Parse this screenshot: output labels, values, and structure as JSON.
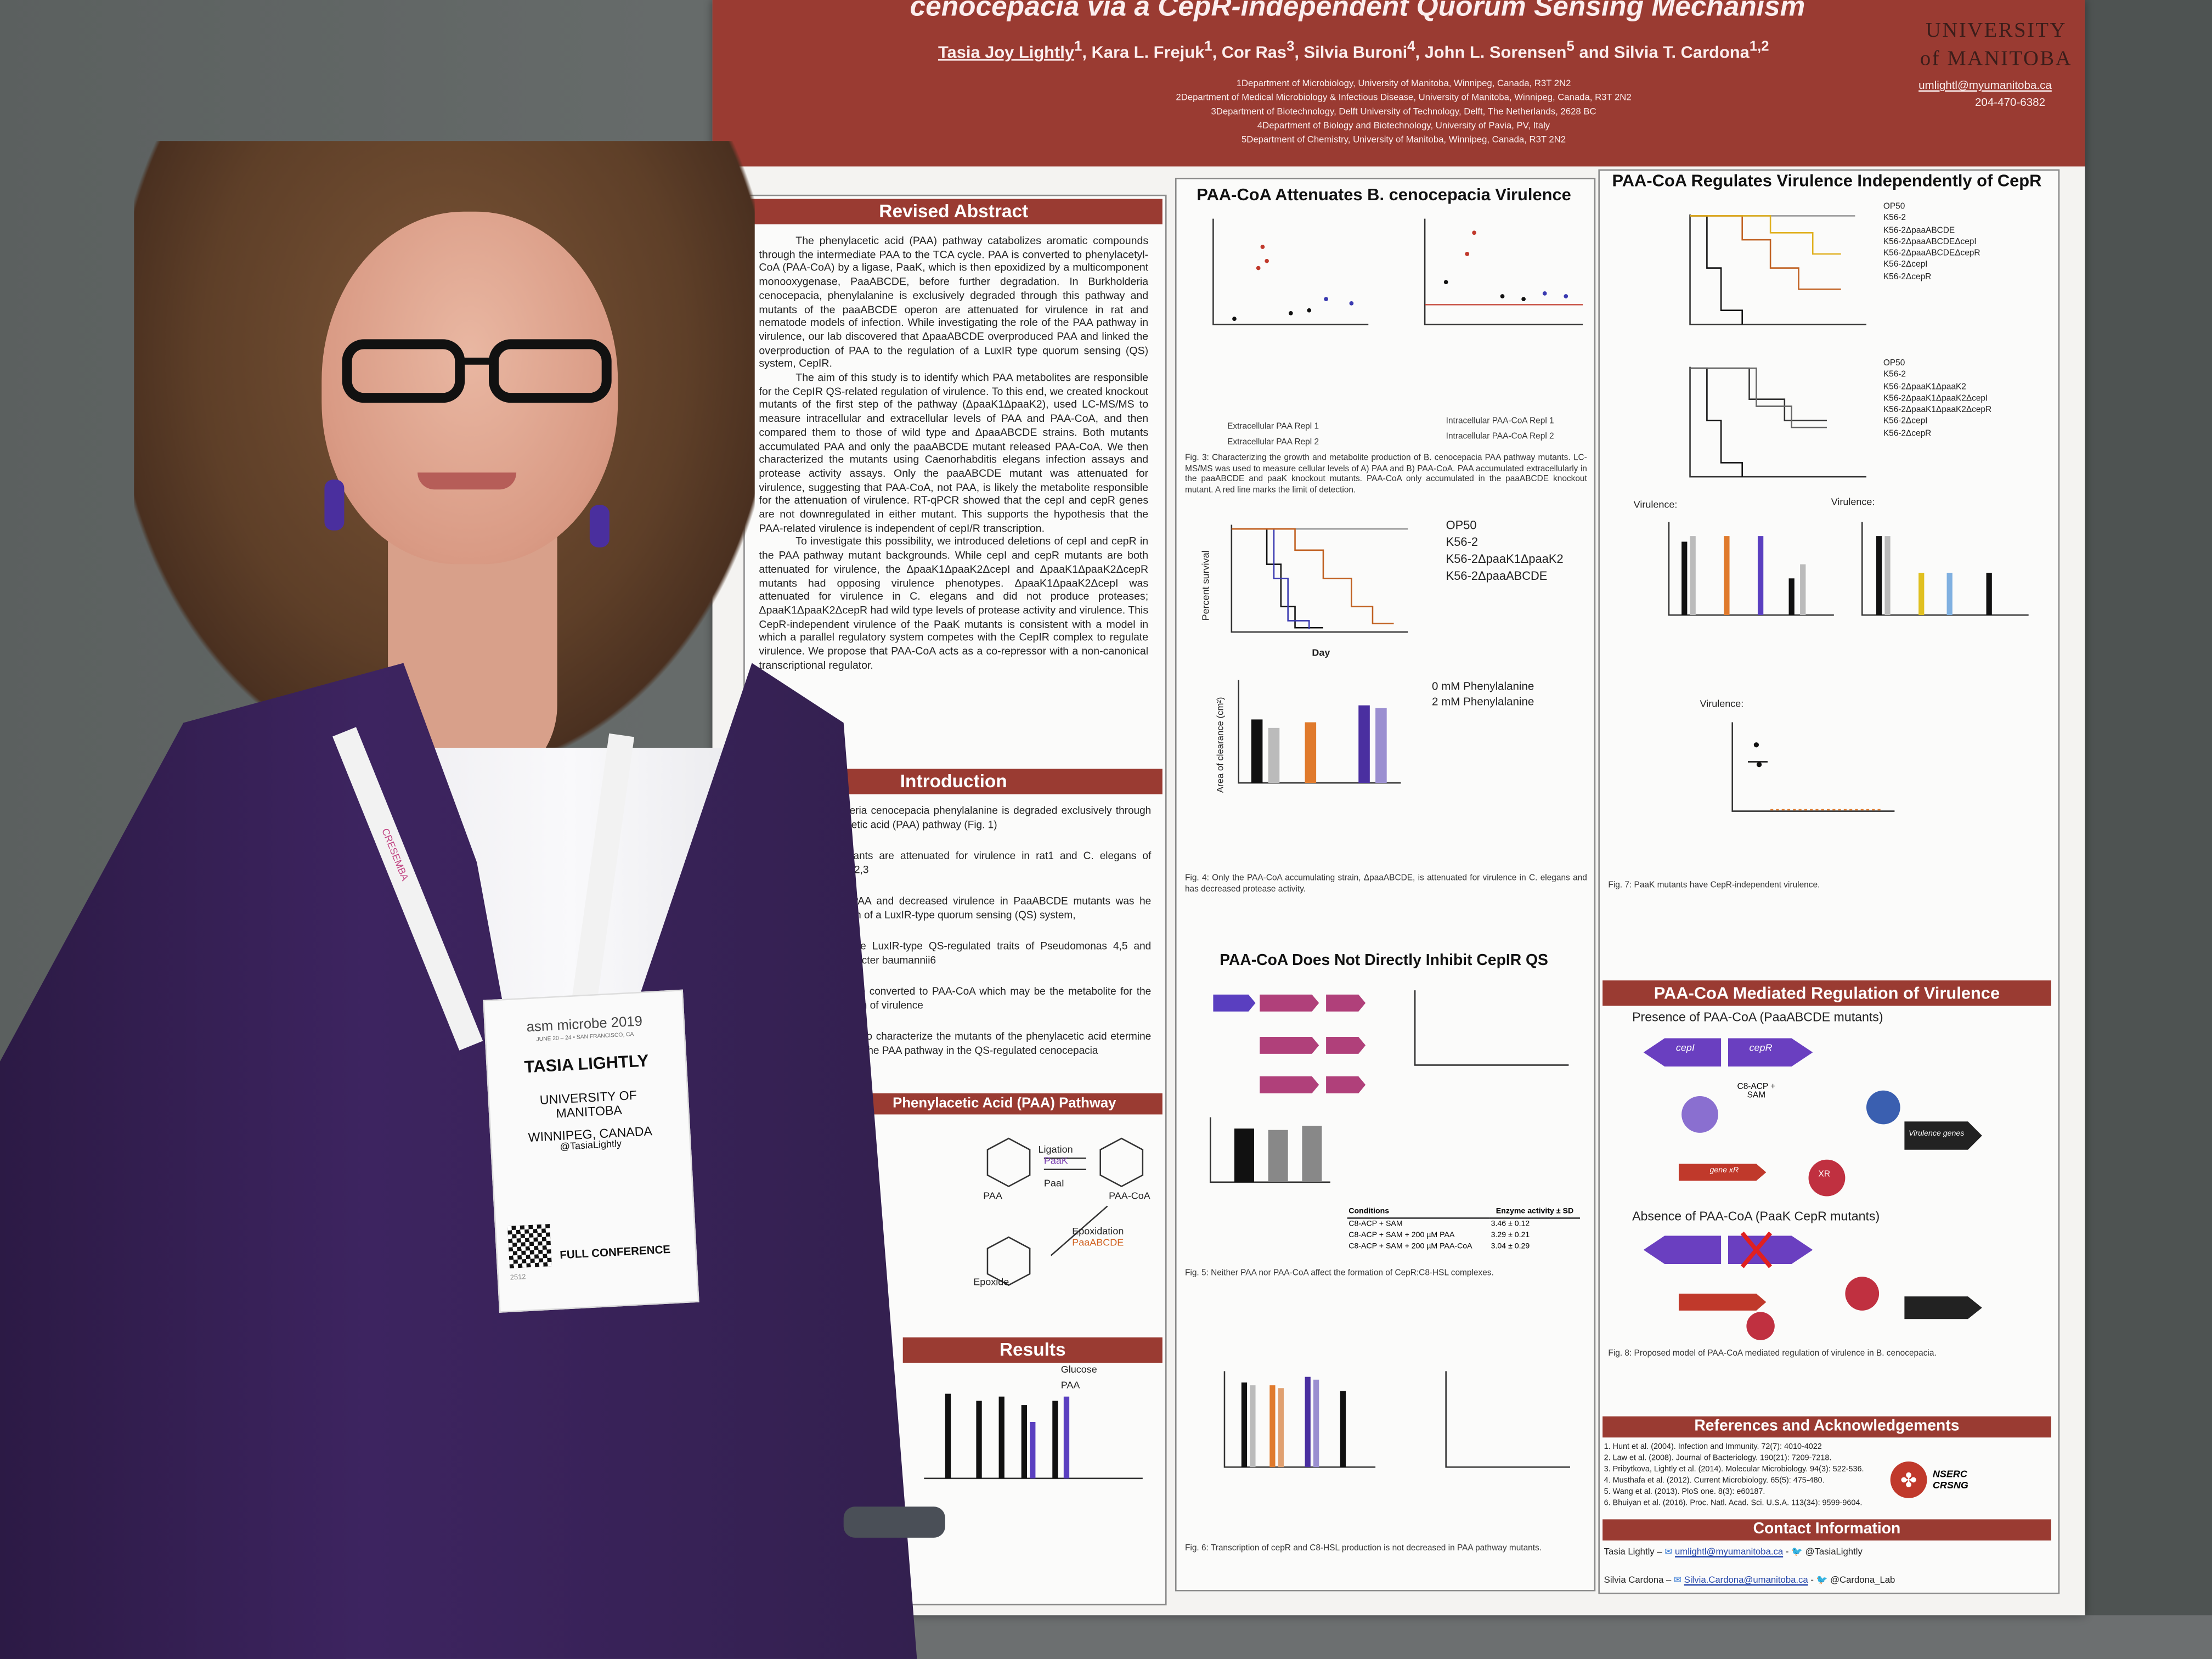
{
  "poster": {
    "title": "cenocepacia via a CepR-independent Quorum Sensing Mechanism",
    "authors": [
      "Tasia Joy Lightly",
      "Kara L. Frejuk",
      "Cor Ras",
      "Silvia Buroni",
      "John L. Sorensen",
      "and Silvia T. Cardona"
    ],
    "author_sup": [
      "1",
      "1",
      "3",
      "4",
      "5",
      "1,2"
    ],
    "affiliations": [
      "1Department of Microbiology, University of Manitoba, Winnipeg, Canada, R3T 2N2",
      "2Department of Medical Microbiology & Infectious Disease, University of Manitoba, Winnipeg, Canada, R3T 2N2",
      "3Department of Biotechnology, Delft University of Technology, Delft, The Netherlands, 2628 BC",
      "4Department of Biology and Biotechnology, University of Pavia, PV, Italy",
      "5Department of Chemistry, University of Manitoba, Winnipeg, Canada, R3T 2N2"
    ],
    "university": "UNIVERSITY of MANITOBA",
    "email": "umlightl@myumanitoba.ca",
    "phone": "204-470-6382",
    "abstract": {
      "heading": "Revised Abstract",
      "paragraphs": [
        "The phenylacetic acid (PAA) pathway catabolizes aromatic compounds through the intermediate PAA to the TCA cycle. PAA is converted to phenylacetyl-CoA (PAA-CoA) by a ligase, PaaK, which is then epoxidized by a multicomponent monooxygenase, PaaABCDE, before further degradation. In Burkholderia cenocepacia, phenylalanine is exclusively degraded through this pathway and mutants of the paaABCDE operon are attenuated for virulence in rat and nematode models of infection. While investigating the role of the PAA pathway in virulence, our lab discovered that ΔpaaABCDE overproduced PAA and linked the overproduction of PAA to the regulation of a LuxIR type quorum sensing (QS) system, CepIR.",
        "The aim of this study is to identify which PAA metabolites are responsible for the CepIR QS-related regulation of virulence. To this end, we created knockout mutants of the first step of the pathway (ΔpaaK1ΔpaaK2), used LC-MS/MS to measure intracellular and extracellular levels of PAA and PAA-CoA, and then compared them to those of wild type and ΔpaaABCDE strains. Both mutants accumulated PAA and only the paaABCDE mutant released PAA-CoA. We then characterized the mutants using Caenorhabditis elegans infection assays and protease activity assays. Only the paaABCDE mutant was attenuated for virulence, suggesting that PAA-CoA, not PAA, is likely the metabolite responsible for the attenuation of virulence. RT-qPCR showed that the cepI and cepR genes are not downregulated in either mutant. This supports the hypothesis that the PAA-related virulence is independent of cepI/R transcription.",
        "To investigate this possibility, we introduced deletions of cepI and cepR in the PAA pathway mutant backgrounds. While cepI and cepR mutants are both attenuated for virulence, the ΔpaaK1ΔpaaK2ΔcepI and ΔpaaK1ΔpaaK2ΔcepR mutants had opposing virulence phenotypes. ΔpaaK1ΔpaaK2ΔcepI was attenuated for virulence in C. elegans and did not produce proteases; ΔpaaK1ΔpaaK2ΔcepR had wild type levels of protease activity and virulence. This CepR-independent virulence of the PaaK mutants is consistent with a model in which a parallel regulatory system competes with the CepIR complex to regulate virulence. We propose that PAA-CoA acts as a co-repressor with a non-canonical transcriptional regulator."
      ]
    },
    "introduction": {
      "heading": "Introduction",
      "items": [
        "urkholderia cenocepacia phenylalanine is degraded exclusively through henylacetic acid (PAA) pathway (Fig. 1)",
        "DE mutants are attenuated for virulence in rat1 and C. elegans of infection2,3",
        "tion of PAA and decreased virulence in PaaABCDE mutants was he regulation of a LuxIR-type quorum sensing (QS) system,",
        "nhibits the LuxIR-type QS-regulated traits of Pseudomonas 4,5 and Acinetobacter baumannii6",
        "AA can be converted to PAA-CoA which may be the metabolite for the attenuation of virulence",
        "is work is to characterize the mutants of the phenylacetic acid etermine the role of the PAA pathway in the QS-regulated cenocepacia"
      ]
    },
    "pathway": {
      "heading": "Phenylacetic Acid (PAA) Pathway",
      "labels": [
        "PAA",
        "PAA-CoA",
        "Ligation",
        "PaaK",
        "PaaI",
        "Epoxide",
        "Epoxidation",
        "PaaABCDE"
      ]
    },
    "results": {
      "heading": "Results",
      "legend": [
        "Glucose",
        "PAA"
      ]
    },
    "col2": {
      "heading1": "PAA-CoA Attenuates B. cenocepacia Virulence",
      "fig3_legend": [
        "Extracellular PAA Repl 1",
        "Extracellular PAA Repl 2",
        "Intracellular PAA-CoA Repl 1",
        "Intracellular PAA-CoA Repl 2"
      ],
      "fig3_caption": "Fig. 3: Characterizing the growth and metabolite production of B. cenocepacia PAA pathway mutants. LC-MS/MS was used to measure cellular levels of A) PAA and B) PAA-CoA. PAA accumulated extracellularly in the paaABCDE and paaK knockout mutants. PAA-CoA only accumulated in the paaABCDE knockout mutant. A red line marks the limit of detection.",
      "survival_legend": [
        "OP50",
        "K56-2",
        "K56-2ΔpaaK1ΔpaaK2",
        "K56-2ΔpaaABCDE"
      ],
      "survival_ylabel": "Percent survival",
      "survival_xlabel": "Day",
      "clearance_legend": [
        "0 mM Phenylalanine",
        "2 mM Phenylalanine"
      ],
      "clearance_ylabel": "Area of clearance (cm²)",
      "fig4_caption": "Fig. 4: Only the PAA-CoA accumulating strain, ΔpaaABCDE, is attenuated for virulence in C. elegans and has decreased protease activity.",
      "heading2": "PAA-CoA Does Not Directly Inhibit CepIR QS",
      "table_headers": [
        "Conditions",
        "Enzyme activity ± SD"
      ],
      "table_rows": [
        [
          "C8-ACP + SAM",
          "3.46 ± 0.12"
        ],
        [
          "C8-ACP + SAM + 200 µM PAA",
          "3.29 ± 0.21"
        ],
        [
          "C8-ACP + SAM + 200 µM PAA-CoA",
          "3.04 ± 0.29"
        ]
      ],
      "fig5_caption": "Fig. 5: Neither PAA nor PAA-CoA affect the formation of CepR:C8-HSL complexes.",
      "fig6_caption": "Fig. 6: Transcription of cepR and C8-HSL production is not decreased in PAA pathway mutants."
    },
    "col3": {
      "heading1": "PAA-CoA Regulates Virulence Independently of CepR",
      "legendA": [
        "OP50",
        "K56-2",
        "K56-2ΔpaaABCDE",
        "K56-2ΔpaaABCDEΔcepI",
        "K56-2ΔpaaABCDEΔcepR",
        "K56-2ΔcepI",
        "K56-2ΔcepR"
      ],
      "legendB": [
        "OP50",
        "K56-2",
        "K56-2ΔpaaK1ΔpaaK2",
        "K56-2ΔpaaK1ΔpaaK2ΔcepI",
        "K56-2ΔpaaK1ΔpaaK2ΔcepR",
        "K56-2ΔcepI",
        "K56-2ΔcepR"
      ],
      "virulence_label": "Virulence:",
      "fig7_caption": "Fig. 7: PaaK mutants have CepR-independent virulence.",
      "heading2": "PAA-CoA Mediated Regulation of Virulence",
      "presence": "Presence of PAA-CoA (PaaABCDE mutants)",
      "absence": "Absence of PAA-CoA (PaaK CepR mutants)",
      "model_labels": [
        "cepI",
        "cepR",
        "C8-ACP + SAM",
        "Virulence genes",
        "gene xR",
        "XR"
      ],
      "fig8_caption": "Fig. 8: Proposed model of PAA-CoA mediated regulation of virulence in B. cenocepacia.",
      "refs_heading": "References and Acknowledgements",
      "references": [
        "1. Hunt et al. (2004). Infection and Immunity. 72(7): 4010-4022",
        "2. Law et al. (2008). Journal of Bacteriology. 190(21): 7209-7218.",
        "3. Pribytkova, Lightly et al. (2014). Molecular Microbiology. 94(3): 522-536.",
        "4. Musthafa et al. (2012). Current Microbiology. 65(5): 475-480.",
        "5. Wang et al. (2013). PloS one. 8(3): e60187.",
        "6. Bhuiyan et al. (2016). Proc. Natl. Acad. Sci. U.S.A. 113(34): 9599-9604."
      ],
      "nserc": "NSERC CRSNG",
      "contact_heading": "Contact Information",
      "contacts": [
        {
          "name": "Tasia Lightly –",
          "email": "umlightl@myumanitoba.ca",
          "twitter": "@TasiaLightly"
        },
        {
          "name": "Silvia Cardona –",
          "email": "Silvia.Cardona@umanitoba.ca",
          "twitter": "@Cardona_Lab"
        }
      ]
    }
  },
  "badge": {
    "event": "asm microbe 2019",
    "dates": "JUNE 20 – 24 • SAN FRANCISCO, CA",
    "name": "TASIA LIGHTLY",
    "org": "UNIVERSITY OF MANITOBA",
    "city": "WINNIPEG, CANADA",
    "handle": "@TasiaLightly",
    "type": "FULL CONFERENCE",
    "number": "2512"
  },
  "lanyard": "CRESEMBA"
}
